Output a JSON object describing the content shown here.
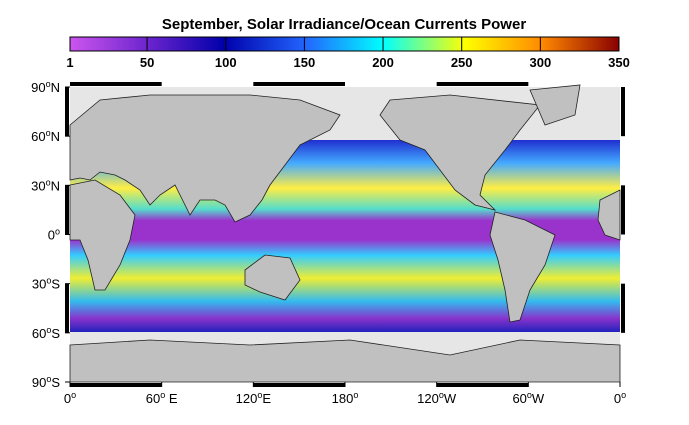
{
  "title": "September, Solar Irradiance/Ocean Currents Power",
  "colorbar": {
    "lim": [
      1,
      350
    ],
    "ticks": [
      1,
      50,
      100,
      150,
      200,
      250,
      300,
      350
    ]
  },
  "map": {
    "lonlim": [
      0,
      360
    ],
    "latlim": [
      -90,
      90
    ],
    "lonticks": [
      {
        "value": 0,
        "label": "0",
        "sup": "o"
      },
      {
        "value": 60,
        "label": "60",
        "sup": "o",
        "suffix": " E"
      },
      {
        "value": 120,
        "label": "120",
        "sup": "o",
        "suffix": "E"
      },
      {
        "value": 180,
        "label": "180",
        "sup": "o"
      },
      {
        "value": 240,
        "label": "120",
        "sup": "o",
        "suffix": "W"
      },
      {
        "value": 300,
        "label": "60",
        "sup": "o",
        "suffix": "W"
      },
      {
        "value": 360,
        "label": "0",
        "sup": "o"
      }
    ],
    "latticks": [
      {
        "value": 90,
        "label": "90",
        "sup": "o",
        "suffix": "N"
      },
      {
        "value": 60,
        "label": "60",
        "sup": "o",
        "suffix": "N"
      },
      {
        "value": 30,
        "label": "30",
        "sup": "o",
        "suffix": "N"
      },
      {
        "value": 0,
        "label": "0",
        "sup": "o"
      },
      {
        "value": -30,
        "label": "30",
        "sup": "o",
        "suffix": "S"
      },
      {
        "value": -60,
        "label": "60",
        "sup": "o",
        "suffix": "S"
      },
      {
        "value": -90,
        "label": "90",
        "sup": "o",
        "suffix": "S"
      }
    ]
  }
}
